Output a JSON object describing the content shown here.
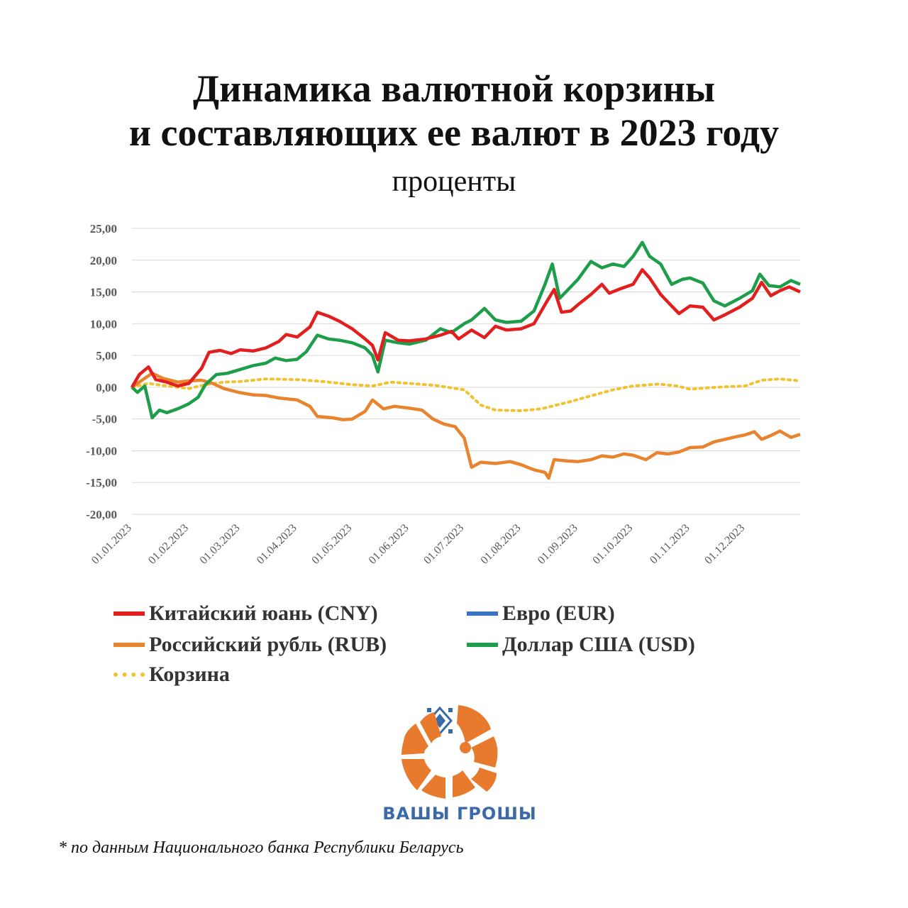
{
  "header": {
    "title_line1": "Динамика валютной корзины",
    "title_line2": "и составляющих ее валют в 2023 году",
    "subtitle": "проценты"
  },
  "chart_data": {
    "type": "line",
    "title": "Динамика валютной корзины и составляющих ее валют в 2023 году",
    "subtitle": "проценты",
    "xlabel": "",
    "ylabel": "",
    "ylim": [
      -20,
      25
    ],
    "yticks": [
      "25,00",
      "20,00",
      "15,00",
      "10,00",
      "5,00",
      "0,00",
      "-5,00",
      "-10,00",
      "-15,00",
      "-20,00"
    ],
    "ytick_values": [
      25,
      20,
      15,
      10,
      5,
      0,
      -5,
      -10,
      -15,
      -20
    ],
    "xticks": [
      "01.01.2023",
      "01.02.2023",
      "01.03.2023",
      "01.04.2023",
      "01.05.2023",
      "01.06.2023",
      "01.07.2023",
      "01.08.2023",
      "01.09.2023",
      "01.10.2023",
      "01.11.2023",
      "01.12.2023"
    ],
    "grid": true,
    "legend_position": "bottom",
    "series": [
      {
        "name": "Китайский юань (CNY)",
        "color": "#e21e1e",
        "style": "solid",
        "points": [
          [
            "01.01.2023",
            0
          ],
          [
            "05.01.2023",
            2.0
          ],
          [
            "10.01.2023",
            3.2
          ],
          [
            "14.01.2023",
            1.2
          ],
          [
            "20.01.2023",
            0.8
          ],
          [
            "26.01.2023",
            0.2
          ],
          [
            "01.02.2023",
            0.6
          ],
          [
            "08.02.2023",
            3.0
          ],
          [
            "12.02.2023",
            5.5
          ],
          [
            "18.02.2023",
            5.8
          ],
          [
            "24.02.2023",
            5.3
          ],
          [
            "01.03.2023",
            5.9
          ],
          [
            "08.03.2023",
            5.7
          ],
          [
            "15.03.2023",
            6.2
          ],
          [
            "22.03.2023",
            7.2
          ],
          [
            "26.03.2023",
            8.3
          ],
          [
            "01.04.2023",
            7.9
          ],
          [
            "08.04.2023",
            9.5
          ],
          [
            "12.04.2023",
            11.8
          ],
          [
            "18.04.2023",
            11.2
          ],
          [
            "24.04.2023",
            10.4
          ],
          [
            "01.05.2023",
            9.2
          ],
          [
            "08.05.2023",
            7.6
          ],
          [
            "12.05.2023",
            6.6
          ],
          [
            "15.05.2023",
            4.3
          ],
          [
            "19.05.2023",
            8.6
          ],
          [
            "26.05.2023",
            7.4
          ],
          [
            "01.06.2023",
            7.3
          ],
          [
            "10.06.2023",
            7.6
          ],
          [
            "18.06.2023",
            8.2
          ],
          [
            "24.06.2023",
            8.8
          ],
          [
            "28.06.2023",
            7.6
          ],
          [
            "05.07.2023",
            9.0
          ],
          [
            "12.07.2023",
            7.8
          ],
          [
            "18.07.2023",
            9.6
          ],
          [
            "24.07.2023",
            9.0
          ],
          [
            "01.08.2023",
            9.2
          ],
          [
            "08.08.2023",
            10.0
          ],
          [
            "15.08.2023",
            13.5
          ],
          [
            "19.08.2023",
            15.4
          ],
          [
            "23.08.2023",
            11.8
          ],
          [
            "28.08.2023",
            12.0
          ],
          [
            "01.09.2023",
            13.0
          ],
          [
            "08.09.2023",
            14.6
          ],
          [
            "14.09.2023",
            16.2
          ],
          [
            "18.09.2023",
            14.8
          ],
          [
            "24.09.2023",
            15.5
          ],
          [
            "01.10.2023",
            16.2
          ],
          [
            "06.10.2023",
            18.5
          ],
          [
            "10.10.2023",
            17.2
          ],
          [
            "16.10.2023",
            14.6
          ],
          [
            "22.10.2023",
            12.8
          ],
          [
            "26.10.2023",
            11.6
          ],
          [
            "01.11.2023",
            12.8
          ],
          [
            "08.11.2023",
            12.6
          ],
          [
            "14.11.2023",
            10.6
          ],
          [
            "20.11.2023",
            11.4
          ],
          [
            "28.11.2023",
            12.6
          ],
          [
            "05.12.2023",
            14.0
          ],
          [
            "10.12.2023",
            16.5
          ],
          [
            "15.12.2023",
            14.4
          ],
          [
            "20.12.2023",
            15.2
          ],
          [
            "25.12.2023",
            15.8
          ],
          [
            "31.12.2023",
            15.0
          ]
        ]
      },
      {
        "name": "Евро (EUR)",
        "color": "#3a73c4",
        "style": "solid",
        "points": []
      },
      {
        "name": "Российский рубль (RUB)",
        "color": "#e8832e",
        "style": "solid",
        "points": [
          [
            "01.01.2023",
            0
          ],
          [
            "06.01.2023",
            1.0
          ],
          [
            "12.01.2023",
            2.2
          ],
          [
            "18.01.2023",
            1.4
          ],
          [
            "26.01.2023",
            0.8
          ],
          [
            "01.02.2023",
            1.0
          ],
          [
            "08.02.2023",
            1.1
          ],
          [
            "14.02.2023",
            0.6
          ],
          [
            "20.02.2023",
            -0.2
          ],
          [
            "28.02.2023",
            -0.8
          ],
          [
            "08.03.2023",
            -1.2
          ],
          [
            "15.03.2023",
            -1.3
          ],
          [
            "22.03.2023",
            -1.7
          ],
          [
            "01.04.2023",
            -2.0
          ],
          [
            "08.04.2023",
            -3.0
          ],
          [
            "12.04.2023",
            -4.6
          ],
          [
            "20.04.2023",
            -4.8
          ],
          [
            "26.04.2023",
            -5.1
          ],
          [
            "01.05.2023",
            -5.0
          ],
          [
            "08.05.2023",
            -3.8
          ],
          [
            "12.05.2023",
            -2.0
          ],
          [
            "18.05.2023",
            -3.4
          ],
          [
            "24.05.2023",
            -3.0
          ],
          [
            "01.06.2023",
            -3.3
          ],
          [
            "08.06.2023",
            -3.6
          ],
          [
            "14.06.2023",
            -5.0
          ],
          [
            "20.06.2023",
            -5.8
          ],
          [
            "26.06.2023",
            -6.2
          ],
          [
            "01.07.2023",
            -8.0
          ],
          [
            "05.07.2023",
            -12.6
          ],
          [
            "10.07.2023",
            -11.8
          ],
          [
            "18.07.2023",
            -12.0
          ],
          [
            "26.07.2023",
            -11.7
          ],
          [
            "01.08.2023",
            -12.2
          ],
          [
            "08.08.2023",
            -13.0
          ],
          [
            "14.08.2023",
            -13.4
          ],
          [
            "16.08.2023",
            -14.3
          ],
          [
            "19.08.2023",
            -11.4
          ],
          [
            "26.08.2023",
            -11.6
          ],
          [
            "01.09.2023",
            -11.7
          ],
          [
            "08.09.2023",
            -11.4
          ],
          [
            "14.09.2023",
            -10.8
          ],
          [
            "20.09.2023",
            -11.0
          ],
          [
            "26.09.2023",
            -10.5
          ],
          [
            "01.10.2023",
            -10.7
          ],
          [
            "08.10.2023",
            -11.4
          ],
          [
            "14.10.2023",
            -10.3
          ],
          [
            "20.10.2023",
            -10.5
          ],
          [
            "26.10.2023",
            -10.2
          ],
          [
            "01.11.2023",
            -9.5
          ],
          [
            "08.11.2023",
            -9.4
          ],
          [
            "14.11.2023",
            -8.6
          ],
          [
            "20.11.2023",
            -8.2
          ],
          [
            "26.11.2023",
            -7.8
          ],
          [
            "01.12.2023",
            -7.5
          ],
          [
            "06.12.2023",
            -7.0
          ],
          [
            "10.12.2023",
            -8.2
          ],
          [
            "15.12.2023",
            -7.6
          ],
          [
            "20.12.2023",
            -6.9
          ],
          [
            "26.12.2023",
            -7.9
          ],
          [
            "31.12.2023",
            -7.4
          ]
        ]
      },
      {
        "name": "Доллар США (USD)",
        "color": "#1e9e4a",
        "style": "solid",
        "points": [
          [
            "01.01.2023",
            0
          ],
          [
            "04.01.2023",
            -0.8
          ],
          [
            "08.01.2023",
            0.2
          ],
          [
            "12.01.2023",
            -4.8
          ],
          [
            "16.01.2023",
            -3.6
          ],
          [
            "20.01.2023",
            -4.0
          ],
          [
            "26.01.2023",
            -3.4
          ],
          [
            "01.02.2023",
            -2.6
          ],
          [
            "06.02.2023",
            -1.6
          ],
          [
            "10.02.2023",
            0.4
          ],
          [
            "16.02.2023",
            2.0
          ],
          [
            "22.02.2023",
            2.2
          ],
          [
            "01.03.2023",
            2.8
          ],
          [
            "08.03.2023",
            3.4
          ],
          [
            "15.03.2023",
            3.8
          ],
          [
            "20.03.2023",
            4.6
          ],
          [
            "26.03.2023",
            4.2
          ],
          [
            "01.04.2023",
            4.4
          ],
          [
            "06.04.2023",
            5.6
          ],
          [
            "12.04.2023",
            8.2
          ],
          [
            "18.04.2023",
            7.6
          ],
          [
            "24.04.2023",
            7.4
          ],
          [
            "01.05.2023",
            7.0
          ],
          [
            "08.05.2023",
            6.2
          ],
          [
            "12.05.2023",
            5.0
          ],
          [
            "15.05.2023",
            2.4
          ],
          [
            "19.05.2023",
            7.4
          ],
          [
            "26.05.2023",
            7.0
          ],
          [
            "01.06.2023",
            6.8
          ],
          [
            "10.06.2023",
            7.4
          ],
          [
            "18.06.2023",
            9.2
          ],
          [
            "24.06.2023",
            8.6
          ],
          [
            "01.07.2023",
            10.0
          ],
          [
            "05.07.2023",
            10.6
          ],
          [
            "12.07.2023",
            12.4
          ],
          [
            "18.07.2023",
            10.6
          ],
          [
            "24.07.2023",
            10.2
          ],
          [
            "01.08.2023",
            10.4
          ],
          [
            "08.08.2023",
            12.0
          ],
          [
            "14.08.2023",
            16.2
          ],
          [
            "18.08.2023",
            19.4
          ],
          [
            "22.08.2023",
            14.0
          ],
          [
            "28.08.2023",
            15.8
          ],
          [
            "01.09.2023",
            17.0
          ],
          [
            "08.09.2023",
            19.8
          ],
          [
            "14.09.2023",
            18.8
          ],
          [
            "20.09.2023",
            19.4
          ],
          [
            "26.09.2023",
            19.0
          ],
          [
            "01.10.2023",
            20.6
          ],
          [
            "06.10.2023",
            22.8
          ],
          [
            "10.10.2023",
            20.6
          ],
          [
            "16.10.2023",
            19.4
          ],
          [
            "22.10.2023",
            16.2
          ],
          [
            "28.10.2023",
            17.0
          ],
          [
            "01.11.2023",
            17.2
          ],
          [
            "08.11.2023",
            16.4
          ],
          [
            "14.11.2023",
            13.6
          ],
          [
            "20.11.2023",
            12.8
          ],
          [
            "28.11.2023",
            14.0
          ],
          [
            "05.12.2023",
            15.2
          ],
          [
            "09.12.2023",
            17.8
          ],
          [
            "14.12.2023",
            16.0
          ],
          [
            "20.12.2023",
            15.8
          ],
          [
            "26.12.2023",
            16.8
          ],
          [
            "31.12.2023",
            16.2
          ]
        ]
      },
      {
        "name": "Корзина",
        "color": "#f2c12e",
        "style": "dotted",
        "points": [
          [
            "01.01.2023",
            0
          ],
          [
            "10.01.2023",
            0.6
          ],
          [
            "20.01.2023",
            0.2
          ],
          [
            "01.02.2023",
            -0.2
          ],
          [
            "10.02.2023",
            0.4
          ],
          [
            "20.02.2023",
            0.8
          ],
          [
            "01.03.2023",
            0.9
          ],
          [
            "15.03.2023",
            1.3
          ],
          [
            "01.04.2023",
            1.2
          ],
          [
            "15.04.2023",
            0.9
          ],
          [
            "01.05.2023",
            0.4
          ],
          [
            "12.05.2023",
            0.2
          ],
          [
            "22.05.2023",
            0.8
          ],
          [
            "01.06.2023",
            0.6
          ],
          [
            "15.06.2023",
            0.3
          ],
          [
            "01.07.2023",
            -0.4
          ],
          [
            "10.07.2023",
            -2.8
          ],
          [
            "18.07.2023",
            -3.6
          ],
          [
            "01.08.2023",
            -3.7
          ],
          [
            "12.08.2023",
            -3.4
          ],
          [
            "26.08.2023",
            -2.4
          ],
          [
            "10.09.2023",
            -1.2
          ],
          [
            "20.09.2023",
            -0.4
          ],
          [
            "01.10.2023",
            0.2
          ],
          [
            "15.10.2023",
            0.5
          ],
          [
            "25.10.2023",
            0.2
          ],
          [
            "01.11.2023",
            -0.3
          ],
          [
            "15.11.2023",
            0.0
          ],
          [
            "01.12.2023",
            0.2
          ],
          [
            "10.12.2023",
            1.1
          ],
          [
            "20.12.2023",
            1.3
          ],
          [
            "31.12.2023",
            1.0
          ]
        ]
      }
    ]
  },
  "legend": {
    "cny": "Китайский юань (CNY)",
    "eur": "Евро (EUR)",
    "rub": "Российский рубль (RUB)",
    "usd": "Доллар США (USD)",
    "basket": "Корзина"
  },
  "logo": {
    "brand": "ВАШЫ ГРОШЫ",
    "colors": {
      "orange": "#e87a2e",
      "blue": "#3b6aa8"
    }
  },
  "footnote": "* по данным Национального банка Республики Беларусь"
}
